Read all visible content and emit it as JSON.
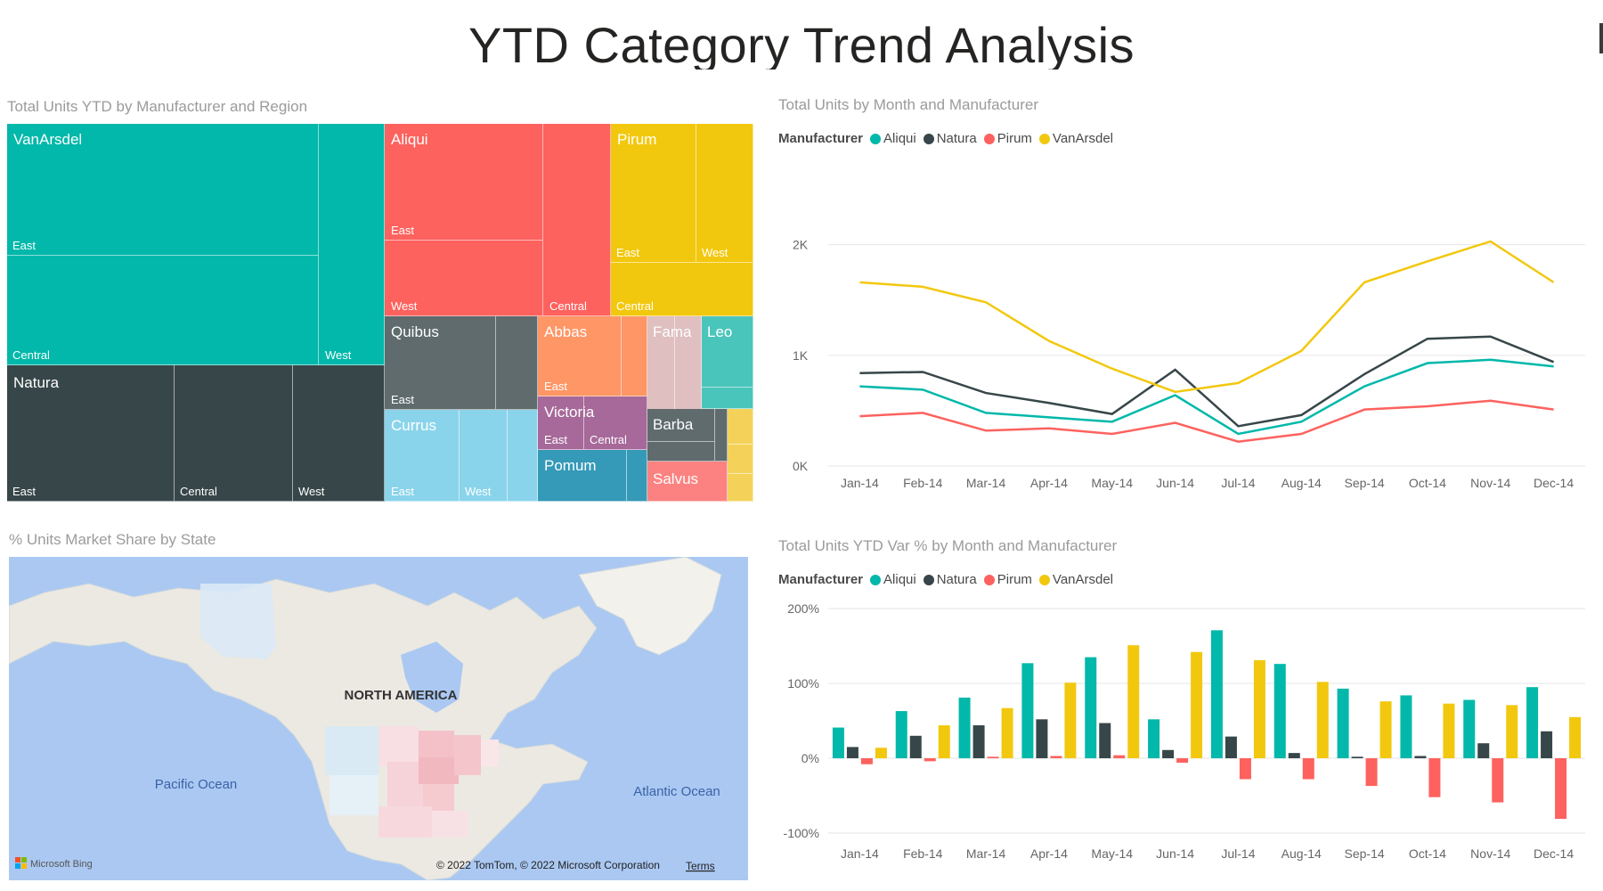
{
  "report": {
    "title": "YTD Category Trend Analysis"
  },
  "treemap": {
    "title": "Total Units YTD by Manufacturer and Region",
    "items": [
      {
        "name": "VanArsdel",
        "color": "#01B8AA",
        "regions": [
          "East",
          "Central",
          "West"
        ]
      },
      {
        "name": "Natura",
        "color": "#374649",
        "regions": [
          "East",
          "Central",
          "West"
        ]
      },
      {
        "name": "Aliqui",
        "color": "#FD625E",
        "regions": [
          "East",
          "West",
          "Central"
        ]
      },
      {
        "name": "Pirum",
        "color": "#F2C80F",
        "regions": [
          "East",
          "West",
          "Central"
        ]
      },
      {
        "name": "Quibus",
        "color": "#5F6B6D",
        "regions": [
          "East"
        ]
      },
      {
        "name": "Currus",
        "color": "#8AD4EB",
        "regions": [
          "East",
          "West"
        ]
      },
      {
        "name": "Abbas",
        "color": "#FE9666",
        "regions": [
          "East"
        ]
      },
      {
        "name": "Victoria",
        "color": "#A66999",
        "regions": [
          "East",
          "Central"
        ]
      },
      {
        "name": "Pomum",
        "color": "#3599B8",
        "regions": []
      },
      {
        "name": "Fama",
        "color": "#DFBFBF",
        "regions": []
      },
      {
        "name": "Leo",
        "color": "#4AC5BB",
        "regions": []
      },
      {
        "name": "Barba",
        "color": "#5F6B6D",
        "regions": []
      },
      {
        "name": "Salvus",
        "color": "#FB8281",
        "regions": []
      },
      {
        "name": "",
        "color": "#F4D25A",
        "regions": []
      }
    ]
  },
  "map": {
    "title": "% Units Market Share by State",
    "continent_label": "NORTH AMERICA",
    "pacific_label": "Pacific Ocean",
    "atlantic_label": "Atlantic Ocean",
    "brand": "Microsoft Bing",
    "copyright": "© 2022 TomTom, © 2022 Microsoft Corporation",
    "terms": "Terms"
  },
  "line_chart": {
    "title": "Total Units by Month and Manufacturer",
    "legend_title": "Manufacturer",
    "chart_data": {
      "type": "line",
      "categories": [
        "Jan-14",
        "Feb-14",
        "Mar-14",
        "Apr-14",
        "May-14",
        "Jun-14",
        "Jul-14",
        "Aug-14",
        "Sep-14",
        "Oct-14",
        "Nov-14",
        "Dec-14"
      ],
      "y_ticks": [
        "0K",
        "1K",
        "2K"
      ],
      "ylim": [
        0,
        2400
      ],
      "series": [
        {
          "name": "Aliqui",
          "color": "#01B8AA",
          "values": [
            720,
            690,
            480,
            440,
            400,
            640,
            290,
            400,
            720,
            930,
            960,
            900
          ]
        },
        {
          "name": "Natura",
          "color": "#374649",
          "values": [
            840,
            850,
            660,
            570,
            470,
            870,
            360,
            460,
            830,
            1150,
            1170,
            940
          ]
        },
        {
          "name": "Pirum",
          "color": "#FD625E",
          "values": [
            450,
            480,
            320,
            340,
            290,
            390,
            220,
            290,
            510,
            540,
            590,
            510
          ]
        },
        {
          "name": "VanArsdel",
          "color": "#F2C80F",
          "values": [
            1660,
            1620,
            1480,
            1130,
            880,
            670,
            750,
            1040,
            1660,
            1850,
            2030,
            1660
          ]
        }
      ]
    }
  },
  "bar_chart": {
    "title": "Total Units YTD Var % by Month and Manufacturer",
    "legend_title": "Manufacturer",
    "chart_data": {
      "type": "bar",
      "categories": [
        "Jan-14",
        "Feb-14",
        "Mar-14",
        "Apr-14",
        "May-14",
        "Jun-14",
        "Jul-14",
        "Aug-14",
        "Sep-14",
        "Oct-14",
        "Nov-14",
        "Dec-14"
      ],
      "y_ticks": [
        "-100%",
        "0%",
        "100%",
        "200%"
      ],
      "ylim": [
        -100,
        200
      ],
      "series": [
        {
          "name": "Aliqui",
          "color": "#01B8AA",
          "values": [
            41,
            63,
            81,
            127,
            135,
            52,
            171,
            126,
            93,
            84,
            78,
            95
          ]
        },
        {
          "name": "Natura",
          "color": "#374649",
          "values": [
            15,
            30,
            44,
            52,
            47,
            11,
            29,
            7,
            2,
            3,
            20,
            36
          ]
        },
        {
          "name": "Pirum",
          "color": "#FD625E",
          "values": [
            -8,
            -4,
            2,
            3,
            4,
            -6,
            -28,
            -28,
            -37,
            -52,
            -59,
            -81
          ]
        },
        {
          "name": "VanArsdel",
          "color": "#F2C80F",
          "values": [
            14,
            44,
            67,
            101,
            151,
            142,
            131,
            102,
            76,
            73,
            71,
            55
          ]
        }
      ]
    }
  }
}
